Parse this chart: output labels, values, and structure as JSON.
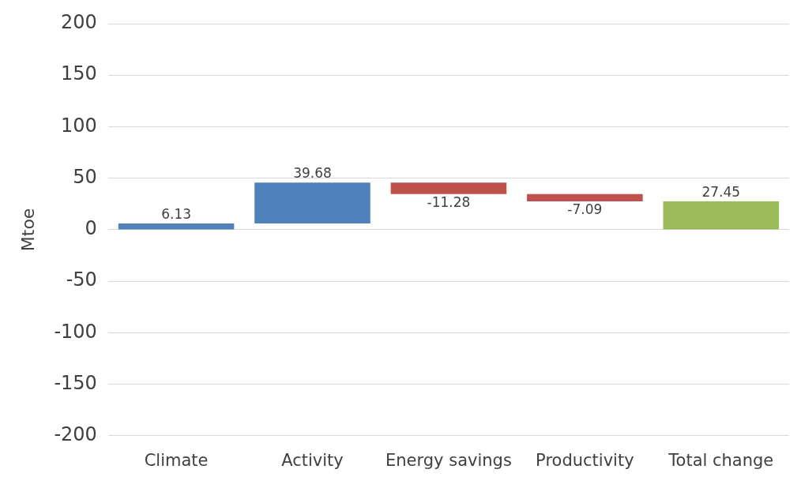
{
  "chart_data": {
    "type": "bar",
    "ylabel": "Mtoe",
    "categories": [
      "Climate",
      "Activity",
      "Energy savings",
      "Productivity",
      "Total change"
    ],
    "values": [
      6.13,
      39.68,
      -11.28,
      -7.09,
      27.45
    ],
    "base": [
      0,
      6.13,
      45.81,
      34.53,
      0
    ],
    "colors": [
      "#4f81bd",
      "#4f81bd",
      "#c0504d",
      "#c0504d",
      "#9bbb59"
    ],
    "ylim": [
      -200,
      200
    ],
    "yticks": [
      -200,
      -150,
      -100,
      -50,
      0,
      50,
      100,
      150,
      200
    ],
    "grid": "y",
    "legend": false,
    "data_labels": true
  }
}
